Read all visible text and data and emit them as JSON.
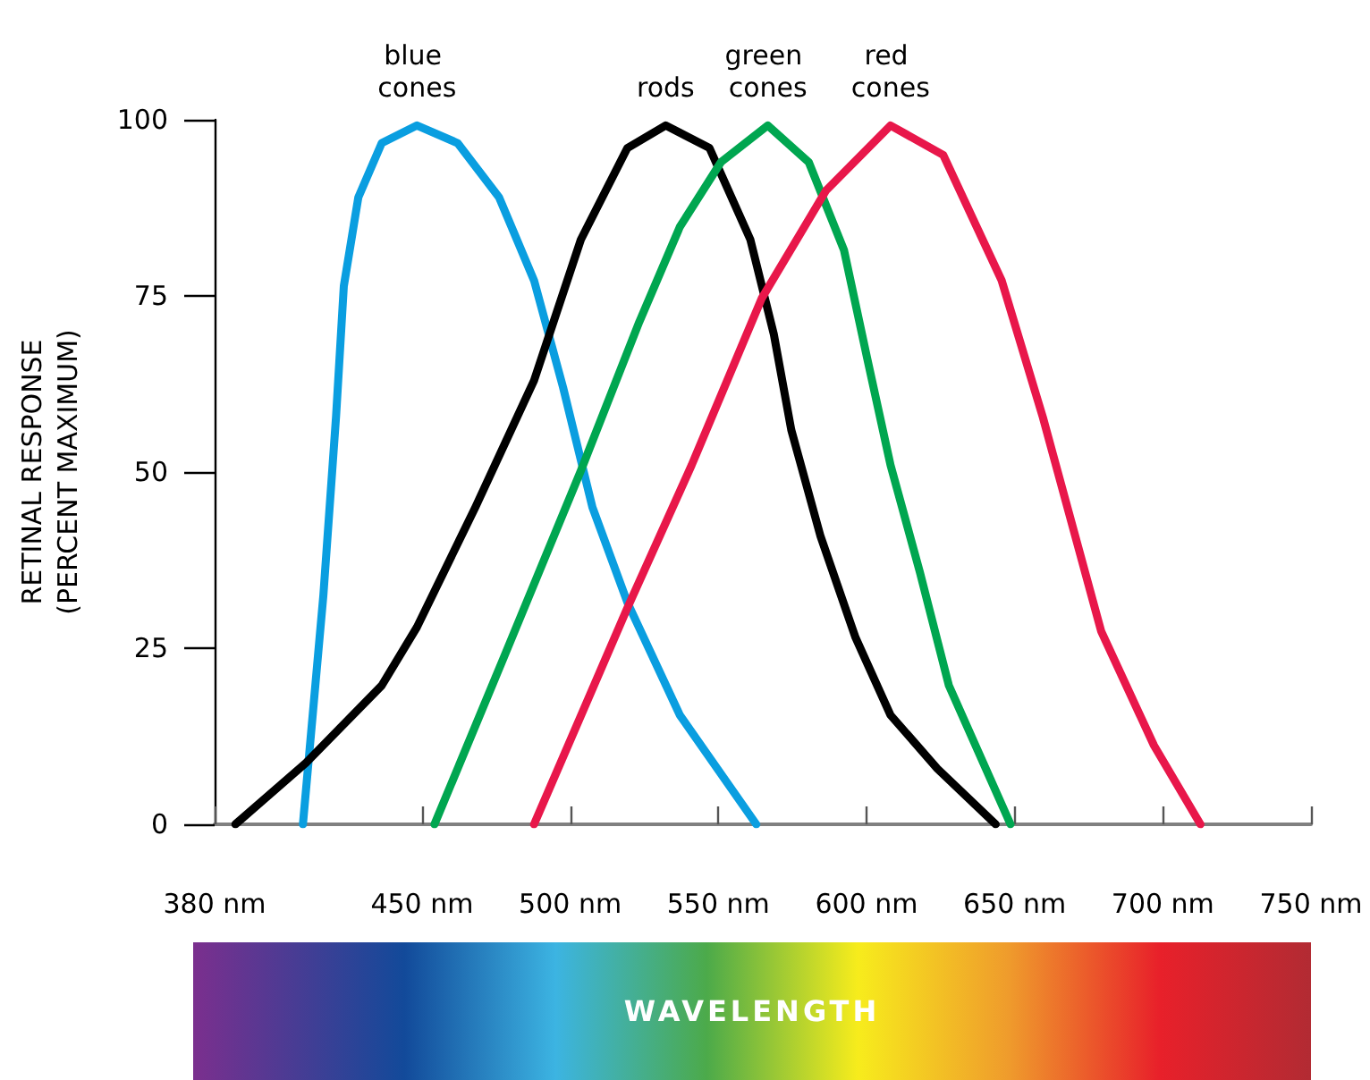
{
  "chart_data": {
    "type": "line",
    "xlabel": "WAVELENGTH",
    "ylabel": "RETINAL RESPONSE\n(PERCENT MAXIMUM)",
    "xlim": [
      380,
      750
    ],
    "xticks": [
      {
        "value": 380,
        "label": "380 nm"
      },
      {
        "value": 450,
        "label": "450 nm"
      },
      {
        "value": 500,
        "label": "500 nm"
      },
      {
        "value": 550,
        "label": "550 nm"
      },
      {
        "value": 600,
        "label": "600 nm"
      },
      {
        "value": 650,
        "label": "650 nm"
      },
      {
        "value": 700,
        "label": "700 nm"
      },
      {
        "value": 750,
        "label": "750 nm"
      }
    ],
    "ylim": [
      0,
      100
    ],
    "yticks": [
      0,
      25,
      50,
      75,
      100
    ],
    "grid": false,
    "legend": false,
    "marker": "none",
    "line_style": "solid",
    "series": [
      {
        "name": "blue cones",
        "color": "#0a9ee0",
        "x": [
          409.8,
          416.7,
          421,
          423.6,
          428.5,
          436.4,
          448.3,
          462,
          476,
          487.8,
          497.6,
          507.5,
          519.3,
          537,
          562.8
        ],
        "values": [
          0,
          32.5,
          58,
          76.4,
          89,
          96.7,
          99.2,
          96.7,
          89,
          77.2,
          62,
          45,
          31.5,
          15.5,
          0
        ]
      },
      {
        "name": "rods",
        "color": "#000000",
        "x": [
          387,
          410.8,
          436.4,
          448.3,
          468,
          487.8,
          503.6,
          519.3,
          532.2,
          547,
          560.8,
          568.7,
          574.6,
          584.4,
          596.3,
          608.1,
          623.9,
          643.6
        ],
        "values": [
          0,
          8.7,
          19.7,
          28,
          45,
          63,
          83,
          96,
          99.2,
          96,
          83,
          69.6,
          56,
          41,
          26.5,
          15.5,
          7.9,
          0
        ]
      },
      {
        "name": "green cones",
        "color": "#00a650",
        "x": [
          454.2,
          477.9,
          503.6,
          523.3,
          537,
          550.9,
          566.7,
          580.5,
          592.4,
          600.2,
          608.1,
          618,
          627.8,
          648.6
        ],
        "values": [
          0,
          24,
          50.2,
          71.3,
          84.8,
          94,
          99.2,
          94,
          81.5,
          66.2,
          51,
          35.8,
          19.7,
          0
        ]
      },
      {
        "name": "red cones",
        "color": "#e8174a",
        "x": [
          487.8,
          519.3,
          541,
          564.7,
          586.4,
          608.1,
          625.9,
          645.6,
          659.5,
          679.2,
          697,
          712.7
        ],
        "values": [
          0,
          30.7,
          51,
          74.7,
          90,
          99.2,
          95,
          77.2,
          57.8,
          27.4,
          11.2,
          0
        ]
      }
    ]
  }
}
